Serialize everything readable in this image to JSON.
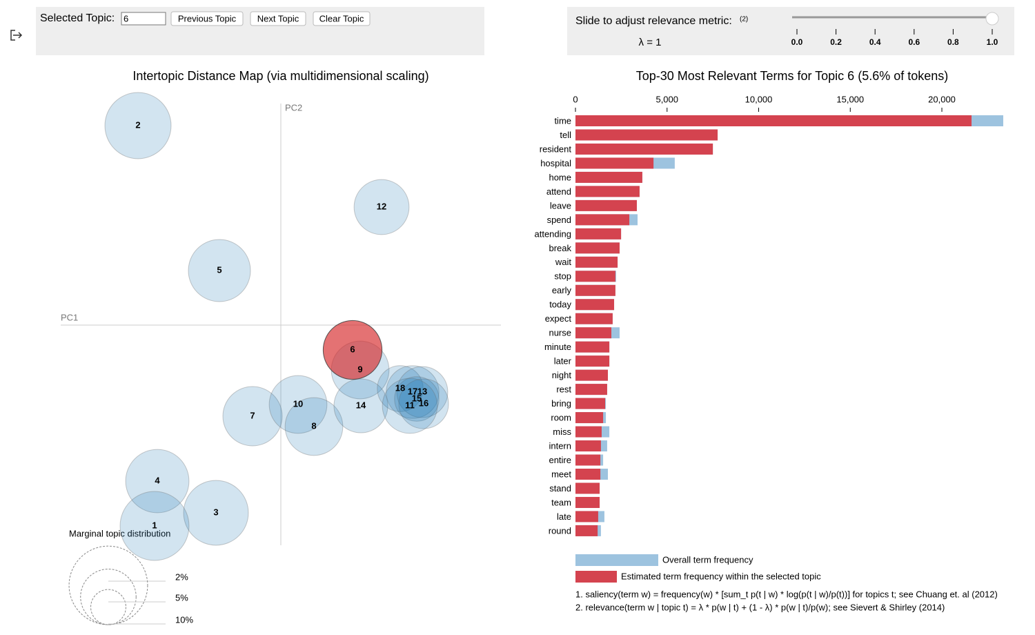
{
  "controls": {
    "selected_topic_label": "Selected Topic:",
    "selected_topic": "6",
    "buttons": [
      "Previous Topic",
      "Next Topic",
      "Clear Topic"
    ],
    "slider_label": "Slide to adjust relevance metric:",
    "slider_note": "(2)",
    "lambda_label": "λ = 1",
    "lambda": 1,
    "slider_ticks": [
      {
        "value": 0,
        "label": "0.0"
      },
      {
        "value": 0.2,
        "label": "0.2"
      },
      {
        "value": 0.4,
        "label": "0.4"
      },
      {
        "value": 0.6,
        "label": "0.6"
      },
      {
        "value": 0.8,
        "label": "0.8"
      },
      {
        "value": 1,
        "label": "1.0"
      }
    ]
  },
  "topic_map": {
    "title": "Intertopic Distance Map (via multidimensional scaling)",
    "x_axis_label": "PC1",
    "y_axis_label": "PC2",
    "selected": "6",
    "topics": [
      {
        "label": "2",
        "pc1": -0.207,
        "pc2": 0.289,
        "size": 7.1
      },
      {
        "label": "12",
        "pc1": 0.146,
        "pc2": 0.171,
        "size": 4.9
      },
      {
        "label": "5",
        "pc1": -0.089,
        "pc2": 0.079,
        "size": 6.25
      },
      {
        "label": "9",
        "pc1": 0.115,
        "pc2": -0.065,
        "size": 5.4
      },
      {
        "label": "7",
        "pc1": -0.041,
        "pc2": -0.132,
        "size": 5.7
      },
      {
        "label": "10",
        "pc1": 0.025,
        "pc2": -0.115,
        "size": 5.4
      },
      {
        "label": "8",
        "pc1": 0.048,
        "pc2": -0.147,
        "size": 5.4
      },
      {
        "label": "14",
        "pc1": 0.116,
        "pc2": -0.117,
        "size": 4.7
      },
      {
        "label": "18",
        "pc1": 0.173,
        "pc2": -0.092,
        "size": 3.4
      },
      {
        "label": "17",
        "pc1": 0.191,
        "pc2": -0.097,
        "size": 4.5
      },
      {
        "label": "13",
        "pc1": 0.205,
        "pc2": -0.097,
        "size": 4.2
      },
      {
        "label": "15",
        "pc1": 0.197,
        "pc2": -0.107,
        "size": 3.2
      },
      {
        "label": "16",
        "pc1": 0.207,
        "pc2": -0.114,
        "size": 4.0
      },
      {
        "label": "11",
        "pc1": 0.187,
        "pc2": -0.117,
        "size": 4.9
      },
      {
        "label": "4",
        "pc1": -0.179,
        "pc2": -0.226,
        "size": 6.5
      },
      {
        "label": "3",
        "pc1": -0.094,
        "pc2": -0.272,
        "size": 6.8
      },
      {
        "label": "1",
        "pc1": -0.183,
        "pc2": -0.291,
        "size": 7.7
      },
      {
        "label": "6",
        "pc1": 0.104,
        "pc2": -0.036,
        "size": 5.6
      }
    ],
    "size_legend_title": "Marginal topic distribution",
    "size_legend": [
      {
        "value": 2,
        "label": "2%"
      },
      {
        "value": 5,
        "label": "5%"
      },
      {
        "value": 10,
        "label": "10%"
      }
    ]
  },
  "chart_data": {
    "type": "bar",
    "title": "Top-30 Most Relevant Terms for Topic 6 (5.6% of tokens)",
    "categories": [
      "time",
      "tell",
      "resident",
      "hospital",
      "home",
      "attend",
      "leave",
      "spend",
      "attending",
      "break",
      "wait",
      "stop",
      "early",
      "today",
      "expect",
      "nurse",
      "minute",
      "later",
      "night",
      "rest",
      "bring",
      "room",
      "miss",
      "intern",
      "entire",
      "meet",
      "stand",
      "team",
      "late",
      "round"
    ],
    "series": [
      {
        "name": "Overall term frequency",
        "color": "#9dc3df",
        "values": [
          23350,
          7760,
          7500,
          5420,
          3650,
          3500,
          3350,
          3390,
          2490,
          2410,
          2300,
          2220,
          2180,
          2110,
          2030,
          2410,
          1850,
          1850,
          1770,
          1730,
          1660,
          1660,
          1850,
          1730,
          1510,
          1770,
          1320,
          1320,
          1580,
          1390
        ]
      },
      {
        "name": "Estimated term frequency within the selected topic",
        "color": "#d4434f",
        "values": [
          21620,
          7760,
          7500,
          4260,
          3650,
          3500,
          3350,
          2940,
          2490,
          2410,
          2300,
          2180,
          2180,
          2110,
          2030,
          1960,
          1850,
          1850,
          1770,
          1730,
          1620,
          1510,
          1430,
          1390,
          1360,
          1360,
          1320,
          1320,
          1240,
          1210
        ]
      }
    ],
    "xlim": [
      0,
      23400
    ],
    "xticks": [
      0,
      {
        "value": 5000,
        "label": "5,000"
      },
      {
        "value": 10000,
        "label": "10,000"
      },
      {
        "value": 15000,
        "label": "15,000"
      },
      {
        "value": 20000,
        "label": "20,000"
      }
    ]
  },
  "footnotes": [
    "1. saliency(term w) = frequency(w) * [sum_t p(t | w) * log(p(t | w)/p(t))] for topics t; see Chuang et. al (2012)",
    "2. relevance(term w | topic t) = λ * p(w | t) + (1 - λ) * p(w | t)/p(w); see Sievert & Shirley (2014)"
  ]
}
